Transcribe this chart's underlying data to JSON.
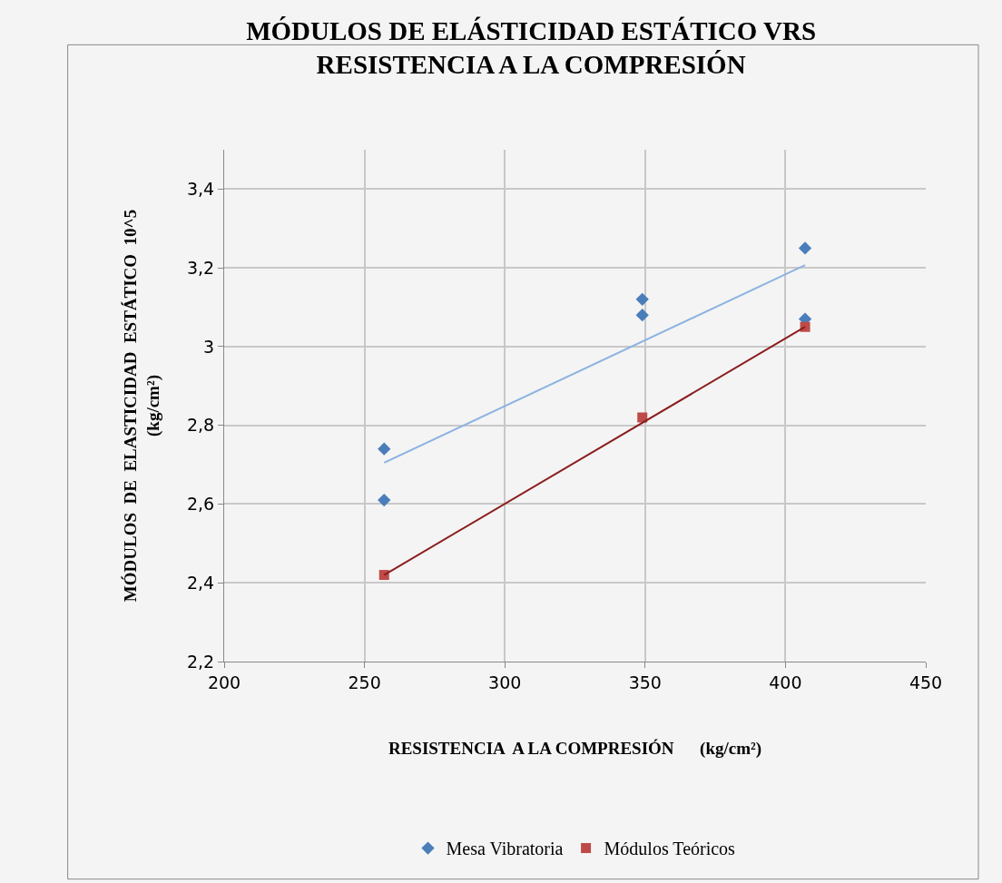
{
  "chart_data": {
    "type": "scatter",
    "title": "MÓDULOS DE ELÁSTICIDAD ESTÁTICO VRS\nRESISTENCIA A LA COMPRESIÓN",
    "xlabel": "RESISTENCIA  A LA COMPRESIÓN      (kg/cm²)",
    "ylabel": "MÓDULOS  DE  ELASTICIDAD  ESTÁTICO  10^5\n(kg/cm²)",
    "series": [
      {
        "name": "Mesa Vibratoria",
        "color": "#4a7ebb",
        "marker": "diamond",
        "x": [
          257,
          257,
          349,
          349,
          407,
          407
        ],
        "values": [
          2.74,
          2.61,
          3.12,
          3.08,
          3.25,
          3.07
        ]
      },
      {
        "name": "Módulos Teóricos",
        "color": "#be4b48",
        "marker": "square",
        "x": [
          257,
          349,
          407
        ],
        "values": [
          2.42,
          2.82,
          3.05
        ]
      },
      {
        "type": "line",
        "color": "#8db3e2",
        "marker": "none",
        "x": [
          257,
          407
        ],
        "values": [
          2.705,
          3.207
        ]
      },
      {
        "type": "line",
        "color": "#8b1e1e",
        "marker": "none",
        "x": [
          257,
          407
        ],
        "values": [
          2.42,
          3.05
        ]
      }
    ],
    "xlim": [
      200,
      450
    ],
    "xticks": [
      200,
      250,
      300,
      350,
      400,
      450
    ],
    "ylim": [
      2.2,
      3.5
    ],
    "yticks": [
      {
        "value": 2.2,
        "label": "2,2"
      },
      {
        "value": 2.4,
        "label": "2,4"
      },
      {
        "value": 2.6,
        "label": "2,6"
      },
      {
        "value": 2.8,
        "label": "2,8"
      },
      3,
      {
        "value": 3.2,
        "label": "3,2"
      },
      {
        "value": 3.4,
        "label": "3,4"
      }
    ],
    "grid": true,
    "legend": "bottom"
  }
}
